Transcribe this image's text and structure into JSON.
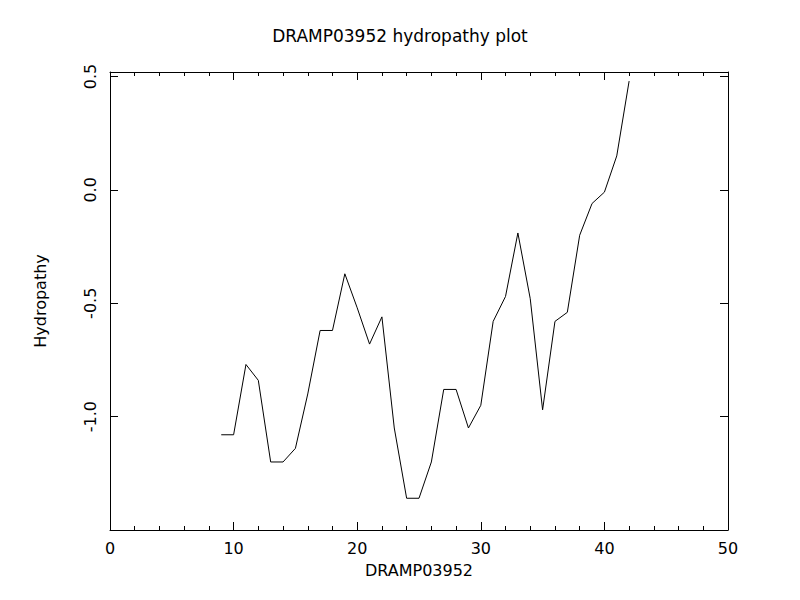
{
  "chart_data": {
    "type": "line",
    "title": "DRAMP03952 hydropathy plot",
    "x_label": "DRAMP03952",
    "y_label": "Hydropathy",
    "x": [
      9,
      10,
      11,
      12,
      13,
      14,
      15,
      16,
      17,
      18,
      19,
      20,
      21,
      22,
      23,
      24,
      25,
      26,
      27,
      28,
      29,
      30,
      31,
      32,
      33,
      34,
      35,
      36,
      37,
      38,
      39,
      40,
      41,
      42
    ],
    "values": [
      -1.08,
      -1.08,
      -0.77,
      -0.84,
      -1.2,
      -1.2,
      -1.14,
      -0.9,
      -0.62,
      -0.62,
      -0.37,
      -0.52,
      -0.68,
      -0.56,
      -1.05,
      -1.36,
      -1.36,
      -1.2,
      -0.88,
      -0.88,
      -1.05,
      -0.95,
      -0.58,
      -0.47,
      -0.19,
      -0.48,
      -0.97,
      -0.58,
      -0.54,
      -0.2,
      -0.06,
      -0.01,
      0.15,
      0.48
    ],
    "color": "#000000",
    "xlim": [
      0,
      50
    ],
    "xticks": [
      0,
      10,
      20,
      30,
      40,
      50
    ],
    "ylim": [
      -1.5,
      0.52
    ],
    "yticks": [
      {
        "value": -1.0,
        "label": "-1.0"
      },
      {
        "value": -0.5,
        "label": "-0.5"
      },
      {
        "value": 0.0,
        "label": "0.0"
      },
      {
        "value": 0.5,
        "label": "0.5"
      }
    ],
    "grid": false
  }
}
